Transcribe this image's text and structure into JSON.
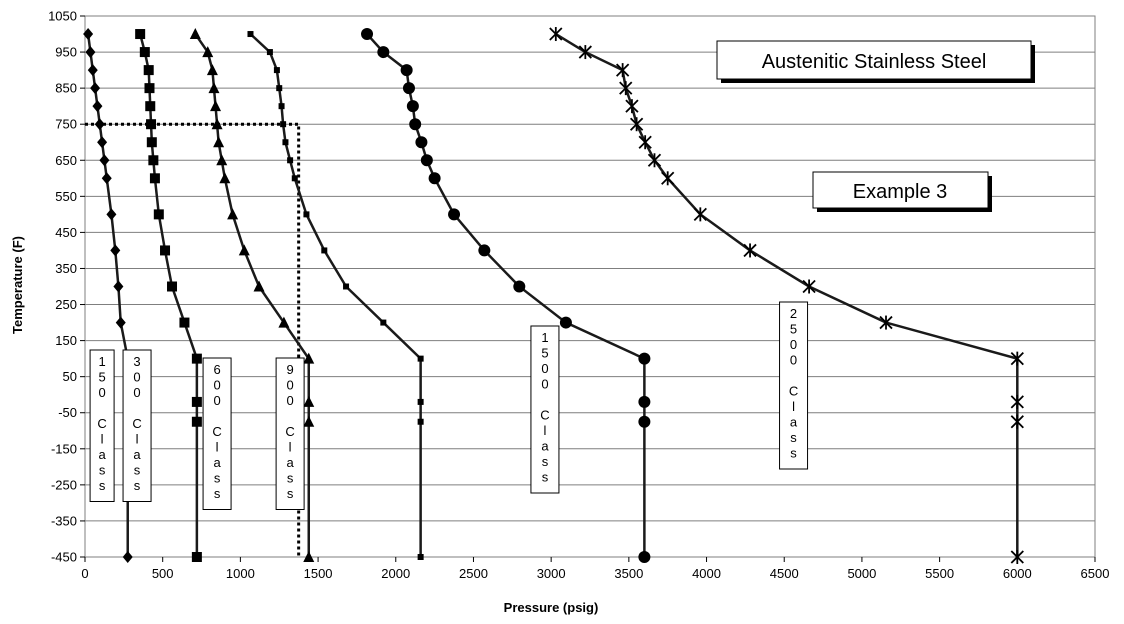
{
  "chart_data": {
    "type": "line",
    "title": "",
    "xlabel": "Pressure (psig)",
    "ylabel": "Temperature (F)",
    "xlim": [
      0,
      6500
    ],
    "ylim": [
      -450,
      1050
    ],
    "xticks": [
      0,
      500,
      1000,
      1500,
      2000,
      2500,
      3000,
      3500,
      4000,
      4500,
      5000,
      5500,
      6000,
      6500
    ],
    "yticks": [
      -450,
      -350,
      -250,
      -150,
      -50,
      50,
      150,
      250,
      350,
      450,
      550,
      650,
      750,
      850,
      950,
      1050
    ],
    "grid": "horizontal",
    "series": [
      {
        "name": "150 Class",
        "label": "150 Class",
        "marker": "diamond",
        "points": [
          [
            275,
            -450
          ],
          [
            275,
            -75
          ],
          [
            275,
            -20
          ],
          [
            275,
            100
          ],
          [
            230,
            200
          ],
          [
            215,
            300
          ],
          [
            195,
            400
          ],
          [
            170,
            500
          ],
          [
            140,
            600
          ],
          [
            125,
            650
          ],
          [
            110,
            700
          ],
          [
            95,
            750
          ],
          [
            80,
            800
          ],
          [
            65,
            850
          ],
          [
            50,
            900
          ],
          [
            35,
            950
          ],
          [
            20,
            1000
          ]
        ]
      },
      {
        "name": "300 Class",
        "label": "300 Class",
        "marker": "square",
        "points": [
          [
            720,
            -450
          ],
          [
            720,
            -75
          ],
          [
            720,
            -20
          ],
          [
            720,
            100
          ],
          [
            640,
            200
          ],
          [
            560,
            300
          ],
          [
            515,
            400
          ],
          [
            475,
            500
          ],
          [
            450,
            600
          ],
          [
            440,
            650
          ],
          [
            430,
            700
          ],
          [
            425,
            750
          ],
          [
            420,
            800
          ],
          [
            415,
            850
          ],
          [
            410,
            900
          ],
          [
            385,
            950
          ],
          [
            355,
            1000
          ]
        ]
      },
      {
        "name": "600 Class",
        "label": "600 Class",
        "marker": "triangle",
        "points": [
          [
            1440,
            -450
          ],
          [
            1440,
            -75
          ],
          [
            1440,
            -20
          ],
          [
            1440,
            100
          ],
          [
            1280,
            200
          ],
          [
            1120,
            300
          ],
          [
            1025,
            400
          ],
          [
            950,
            500
          ],
          [
            900,
            600
          ],
          [
            880,
            650
          ],
          [
            860,
            700
          ],
          [
            850,
            750
          ],
          [
            840,
            800
          ],
          [
            830,
            850
          ],
          [
            820,
            900
          ],
          [
            790,
            950
          ],
          [
            710,
            1000
          ]
        ]
      },
      {
        "name": "900 Class",
        "label": "900 Class",
        "marker": "dash",
        "points": [
          [
            2160,
            -450
          ],
          [
            2160,
            -75
          ],
          [
            2160,
            -20
          ],
          [
            2160,
            100
          ],
          [
            1920,
            200
          ],
          [
            1680,
            300
          ],
          [
            1540,
            400
          ],
          [
            1425,
            500
          ],
          [
            1350,
            600
          ],
          [
            1320,
            650
          ],
          [
            1290,
            700
          ],
          [
            1275,
            750
          ],
          [
            1265,
            800
          ],
          [
            1250,
            850
          ],
          [
            1235,
            900
          ],
          [
            1190,
            950
          ],
          [
            1065,
            1000
          ]
        ]
      },
      {
        "name": "1500 Class",
        "label": "1500 Class",
        "marker": "circle",
        "points": [
          [
            3600,
            -450
          ],
          [
            3600,
            -75
          ],
          [
            3600,
            -20
          ],
          [
            3600,
            100
          ],
          [
            3095,
            200
          ],
          [
            2795,
            300
          ],
          [
            2570,
            400
          ],
          [
            2375,
            500
          ],
          [
            2250,
            600
          ],
          [
            2200,
            650
          ],
          [
            2165,
            700
          ],
          [
            2125,
            750
          ],
          [
            2110,
            800
          ],
          [
            2085,
            850
          ],
          [
            2070,
            900
          ],
          [
            1920,
            950
          ],
          [
            1815,
            1000
          ]
        ]
      },
      {
        "name": "2500 Class",
        "label": "2500 Class",
        "marker": "star",
        "points": [
          [
            6000,
            -450
          ],
          [
            6000,
            -75
          ],
          [
            6000,
            -20
          ],
          [
            6000,
            100
          ],
          [
            5155,
            200
          ],
          [
            4660,
            300
          ],
          [
            4280,
            400
          ],
          [
            3960,
            500
          ],
          [
            3750,
            600
          ],
          [
            3665,
            650
          ],
          [
            3605,
            700
          ],
          [
            3550,
            750
          ],
          [
            3520,
            800
          ],
          [
            3480,
            850
          ],
          [
            3460,
            900
          ],
          [
            3220,
            950
          ],
          [
            3030,
            1000
          ]
        ]
      }
    ],
    "reference_line": {
      "x": 1375,
      "y": 750,
      "style": "dotted"
    },
    "annotations": [
      "Austenitic Stainless Steel",
      "Example 3"
    ]
  },
  "labels": {
    "box_title": "Austenitic Stainless Steel",
    "box_example": "Example 3"
  }
}
